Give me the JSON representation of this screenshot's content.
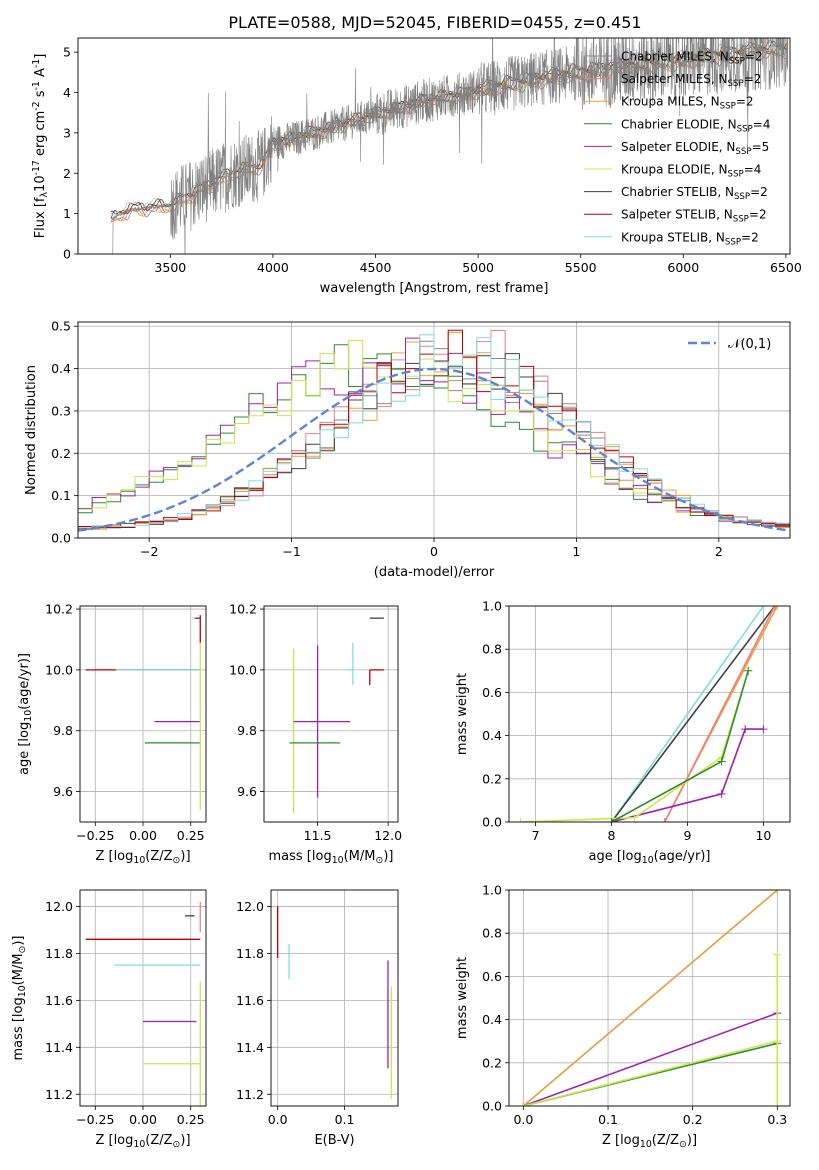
{
  "title": "PLATE=0588, MJD=52045, FIBERID=0455, z=0.451",
  "colors": {
    "chabrier_miles": "#8a8a8a",
    "salpeter_miles": "#f08080",
    "kroupa_miles": "#f0a03c",
    "chabrier_elodie": "#2e8b2e",
    "salpeter_elodie": "#a020b0",
    "kroupa_elodie": "#c8e84a",
    "chabrier_stelib": "#404040",
    "salpeter_stelib": "#c00000",
    "kroupa_stelib": "#7fdede",
    "gauss": "#5b86d6",
    "grid": "#b0b0b0"
  },
  "chart_data": [
    {
      "id": "spectrum",
      "type": "line",
      "xlabel": "wavelength [Angstrom, rest frame]",
      "ylabel": "Flux [f$_\\lambda$10$^{-17}$ erg cm$^{-2}$ s$^{-1}$ A$^{-1}$]",
      "xlim": [
        3050,
        6520
      ],
      "ylim": [
        0,
        5.35
      ],
      "xticks": [
        3500,
        4000,
        4500,
        5000,
        5500,
        6000,
        6500
      ],
      "yticks": [
        0,
        1,
        2,
        3,
        4,
        5
      ],
      "data_start_wavelength": 3210,
      "data_end_wavelength": 6510,
      "continuum": [
        [
          3210,
          0.85
        ],
        [
          3300,
          1.1
        ],
        [
          3500,
          1.2
        ],
        [
          3650,
          1.6
        ],
        [
          3800,
          2.0
        ],
        [
          3950,
          2.2
        ],
        [
          4000,
          2.75
        ],
        [
          4100,
          2.85
        ],
        [
          4300,
          3.15
        ],
        [
          4500,
          3.45
        ],
        [
          4700,
          3.75
        ],
        [
          4900,
          3.95
        ],
        [
          5100,
          4.15
        ],
        [
          5300,
          4.35
        ],
        [
          5500,
          4.5
        ],
        [
          5700,
          4.65
        ],
        [
          6000,
          4.8
        ],
        [
          6200,
          4.95
        ],
        [
          6500,
          5.1
        ]
      ],
      "legend": [
        {
          "label": "Chabrier MILES, N$_{SSP}$=2",
          "color_key": "chabrier_miles"
        },
        {
          "label": "Salpeter MILES, N$_{SSP}$=2",
          "color_key": "salpeter_miles"
        },
        {
          "label": "Kroupa MILES, N$_{SSP}$=2",
          "color_key": "kroupa_miles"
        },
        {
          "label": "Chabrier ELODIE, N$_{SSP}$=4",
          "color_key": "chabrier_elodie"
        },
        {
          "label": "Salpeter ELODIE, N$_{SSP}$=5",
          "color_key": "salpeter_elodie"
        },
        {
          "label": "Kroupa ELODIE, N$_{SSP}$=4",
          "color_key": "kroupa_elodie"
        },
        {
          "label": "Chabrier STELIB, N$_{SSP}$=2",
          "color_key": "chabrier_stelib"
        },
        {
          "label": "Salpeter STELIB, N$_{SSP}$=2",
          "color_key": "salpeter_stelib"
        },
        {
          "label": "Kroupa STELIB, N$_{SSP}$=2",
          "color_key": "kroupa_stelib"
        }
      ],
      "legend_location": "upper right"
    },
    {
      "id": "residuals",
      "type": "step",
      "xlabel": "(data-model)/error",
      "ylabel": "Normed distribution",
      "xlim": [
        -2.5,
        2.5
      ],
      "ylim": [
        0,
        0.51
      ],
      "xticks": [
        -2,
        -1,
        0,
        1,
        2
      ],
      "yticks": [
        0.0,
        0.1,
        0.2,
        0.3,
        0.4,
        0.5
      ],
      "bin_width": 0.1,
      "legend": [
        {
          "label": "$\\mathcal{N}(0,1)$",
          "color_key": "gauss"
        }
      ],
      "legend_location": "upper right",
      "grid": true
    },
    {
      "id": "age_vs_Z",
      "type": "errorbar",
      "xlabel": "Z [log$_{10}$(Z/Z$_\\odot$)]",
      "ylabel": "age  [log$_{10}$(age/yr)]",
      "xlim": [
        -0.33,
        0.33
      ],
      "ylim": [
        9.5,
        10.21
      ],
      "xticks": [
        -0.25,
        0.0,
        0.25
      ],
      "yticks": [
        9.6,
        9.8,
        10.0,
        10.2
      ],
      "points": [
        {
          "color_key": "salpeter_stelib",
          "x": -0.1,
          "xerr": [
            0.2,
            0.4
          ],
          "y": 10.0,
          "yerr": [
            0,
            0
          ]
        },
        {
          "color_key": "kroupa_stelib",
          "x": 0.12,
          "xerr": [
            0.26,
            0.18
          ],
          "y": 10.0,
          "yerr": [
            0,
            0
          ]
        },
        {
          "color_key": "salpeter_elodie",
          "x": 0.2,
          "xerr": [
            0.14,
            0.1
          ],
          "y": 9.83,
          "yerr": [
            0,
            0
          ]
        },
        {
          "color_key": "chabrier_elodie",
          "x": 0.15,
          "xerr": [
            0.14,
            0.15
          ],
          "y": 9.76,
          "yerr": [
            0,
            0
          ]
        },
        {
          "color_key": "kroupa_elodie",
          "x": 0.3,
          "xerr": [
            0,
            0
          ],
          "y": 9.8,
          "yerr": [
            0.26,
            0.3
          ]
        },
        {
          "color_key": "chabrier_stelib",
          "x": 0.3,
          "xerr": [
            0.03,
            0
          ],
          "y": 10.17,
          "yerr": [
            0,
            0
          ]
        },
        {
          "color_key": "salpeter_stelib",
          "x": 0.3,
          "xerr": [
            0,
            0
          ],
          "y": 10.14,
          "yerr": [
            0.05,
            0.04
          ]
        }
      ],
      "grid": true
    },
    {
      "id": "age_vs_mass",
      "type": "errorbar",
      "xlabel": "mass [log$_{10}$(M/M$_\\odot$)]",
      "ylabel": "",
      "xlim": [
        11.12,
        12.07
      ],
      "ylim": [
        9.5,
        10.21
      ],
      "xticks": [
        11.5,
        12.0
      ],
      "yticks": [
        9.6,
        9.8,
        10.0,
        10.2
      ],
      "points": [
        {
          "color_key": "kroupa_elodie",
          "x": 11.33,
          "xerr": [
            0,
            0
          ],
          "y": 9.8,
          "yerr": [
            0.27,
            0.27
          ]
        },
        {
          "color_key": "chabrier_elodie",
          "x": 11.5,
          "xerr": [
            0.2,
            0.16
          ],
          "y": 9.76,
          "yerr": [
            0,
            0
          ]
        },
        {
          "color_key": "salpeter_elodie",
          "x": 11.5,
          "xerr": [
            0.17,
            0.23
          ],
          "y": 9.83,
          "yerr": [
            0.25,
            0.25
          ]
        },
        {
          "color_key": "kroupa_stelib",
          "x": 11.75,
          "xerr": [
            0.05,
            0
          ],
          "y": 10.0,
          "yerr": [
            0.05,
            0.09
          ]
        },
        {
          "color_key": "salpeter_stelib",
          "x": 11.87,
          "xerr": [
            0,
            0.1
          ],
          "y": 10.0,
          "yerr": [
            0.05,
            0
          ]
        },
        {
          "color_key": "chabrier_stelib",
          "x": 11.95,
          "xerr": [
            0.08,
            0.02
          ],
          "y": 10.17,
          "yerr": [
            0,
            0
          ]
        }
      ],
      "grid": true
    },
    {
      "id": "mass_weight_vs_age",
      "type": "line",
      "xlabel": "age  [log$_{10}$(age/yr)]",
      "ylabel": "mass weight",
      "xlim": [
        6.65,
        10.35
      ],
      "ylim": [
        0,
        1
      ],
      "xticks": [
        7,
        8,
        9,
        10
      ],
      "yticks": [
        0.0,
        0.2,
        0.4,
        0.6,
        0.8,
        1.0
      ],
      "series": [
        {
          "color_key": "kroupa_stelib",
          "x": [
            8.0,
            10.0
          ],
          "y": [
            0.0,
            1.0
          ]
        },
        {
          "color_key": "chabrier_stelib",
          "x": [
            8.0,
            10.15
          ],
          "y": [
            0.0,
            1.0
          ]
        },
        {
          "color_key": "kroupa_miles",
          "x": [
            8.7,
            10.18
          ],
          "y": [
            0.0,
            1.0
          ]
        },
        {
          "color_key": "salpeter_miles",
          "x": [
            8.7,
            10.15
          ],
          "y": [
            0.0,
            1.0
          ]
        },
        {
          "color_key": "salpeter_elodie",
          "x": [
            8.0,
            9.45,
            9.76,
            10.0
          ],
          "y": [
            0.0,
            0.13,
            0.43,
            0.43
          ]
        },
        {
          "color_key": "kroupa_elodie",
          "x": [
            6.8,
            8.3,
            9.45,
            9.8
          ],
          "y": [
            0.0,
            0.02,
            0.3,
            0.7
          ]
        },
        {
          "color_key": "chabrier_elodie",
          "x": [
            8.0,
            9.45,
            9.8
          ],
          "y": [
            0.0,
            0.28,
            0.7
          ]
        }
      ],
      "grid": true
    },
    {
      "id": "mass_vs_Z",
      "type": "errorbar",
      "xlabel": "Z [log$_{10}$(Z/Z$_\\odot$)]",
      "ylabel": "mass [log$_{10}$(M/M$_\\odot$)]",
      "xlim": [
        -0.33,
        0.33
      ],
      "ylim": [
        11.15,
        12.07
      ],
      "xticks": [
        -0.25,
        0.0,
        0.25
      ],
      "yticks": [
        11.2,
        11.4,
        11.6,
        11.8,
        12.0
      ],
      "points": [
        {
          "color_key": "salpeter_stelib",
          "x": 0.0,
          "xerr": [
            0.3,
            0.3
          ],
          "y": 11.86,
          "yerr": [
            0,
            0
          ]
        },
        {
          "color_key": "kroupa_stelib",
          "x": 0.0,
          "xerr": [
            0.15,
            0.3
          ],
          "y": 11.75,
          "yerr": [
            0,
            0
          ]
        },
        {
          "color_key": "salpeter_elodie",
          "x": 0.15,
          "xerr": [
            0.15,
            0.13
          ],
          "y": 11.51,
          "yerr": [
            0,
            0
          ]
        },
        {
          "color_key": "kroupa_elodie",
          "x": 0.3,
          "xerr": [
            0,
            0
          ],
          "y": 11.5,
          "yerr": [
            0.35,
            0.18
          ]
        },
        {
          "color_key": "kroupa_elodie",
          "x": 0.15,
          "xerr": [
            0.15,
            0.15
          ],
          "y": 11.33,
          "yerr": [
            0,
            0
          ]
        },
        {
          "color_key": "chabrier_stelib",
          "x": 0.27,
          "xerr": [
            0.05,
            0
          ],
          "y": 11.96,
          "yerr": [
            0,
            0
          ]
        },
        {
          "color_key": "salpeter_miles",
          "x": 0.3,
          "xerr": [
            0,
            0
          ],
          "y": 11.97,
          "yerr": [
            0.08,
            0.05
          ]
        }
      ],
      "grid": true
    },
    {
      "id": "mass_vs_ebv",
      "type": "errorbar",
      "xlabel": "E(B-V)",
      "ylabel": "",
      "xlim": [
        -0.01,
        0.18
      ],
      "ylim": [
        11.15,
        12.07
      ],
      "xticks": [
        0.0,
        0.1
      ],
      "yticks": [
        11.2,
        11.4,
        11.6,
        11.8,
        12.0
      ],
      "points": [
        {
          "color_key": "salpeter_stelib",
          "x": 0.0,
          "xerr": [
            0,
            0
          ],
          "y": 11.86,
          "yerr": [
            0.08,
            0.14
          ]
        },
        {
          "color_key": "kroupa_stelib",
          "x": 0.017,
          "xerr": [
            0,
            0
          ],
          "y": 11.77,
          "yerr": [
            0.08,
            0.07
          ]
        },
        {
          "color_key": "salpeter_elodie",
          "x": 0.165,
          "xerr": [
            0,
            0
          ],
          "y": 11.54,
          "yerr": [
            0.23,
            0.23
          ]
        },
        {
          "color_key": "kroupa_elodie",
          "x": 0.17,
          "xerr": [
            0,
            0
          ],
          "y": 11.42,
          "yerr": [
            0.24,
            0.24
          ]
        }
      ],
      "grid": true
    },
    {
      "id": "mass_weight_vs_Z",
      "type": "line",
      "xlabel": "Z [log$_{10}$(Z/Z$_\\odot$)]",
      "ylabel": "mass weight",
      "xlim": [
        -0.017,
        0.315
      ],
      "ylim": [
        0,
        1
      ],
      "xticks": [
        0.0,
        0.1,
        0.2,
        0.3
      ],
      "yticks": [
        0.0,
        0.2,
        0.4,
        0.6,
        0.8,
        1.0
      ],
      "series": [
        {
          "color_key": "kroupa_stelib",
          "x": [
            0.0,
            0.3
          ],
          "y": [
            0.0,
            1.0
          ]
        },
        {
          "color_key": "kroupa_miles",
          "x": [
            0.0,
            0.3
          ],
          "y": [
            0.0,
            1.0
          ]
        },
        {
          "color_key": "salpeter_elodie",
          "x": [
            0.0,
            0.3
          ],
          "y": [
            0.0,
            0.43
          ]
        },
        {
          "color_key": "chabrier_elodie",
          "x": [
            0.0,
            0.3
          ],
          "y": [
            0.0,
            0.29
          ]
        },
        {
          "color_key": "kroupa_elodie",
          "x": [
            0.0,
            0.3
          ],
          "y": [
            0.0,
            0.3
          ]
        },
        {
          "color_key": "kroupa_elodie",
          "x": [
            0.3,
            0.3
          ],
          "y": [
            0.0,
            0.7
          ]
        }
      ],
      "grid": true
    }
  ]
}
